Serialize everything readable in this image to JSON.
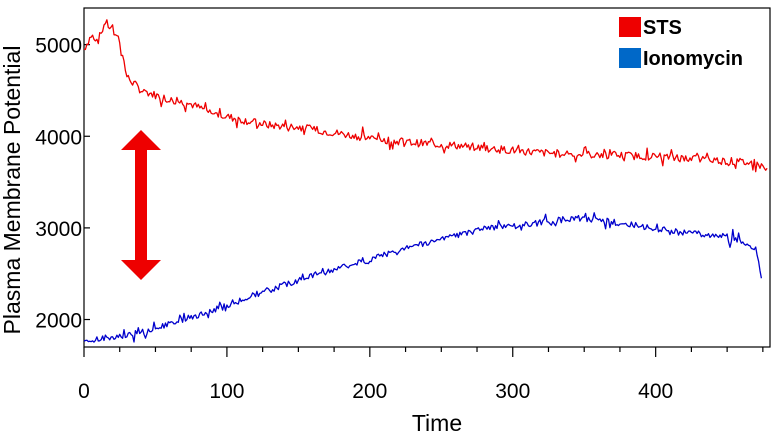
{
  "chart_data": {
    "type": "line",
    "title": "",
    "xlabel": "Time",
    "ylabel": "Plasma Membrane Potential",
    "xlim": [
      0,
      480
    ],
    "ylim": [
      1700,
      5400
    ],
    "xticks": [
      0,
      100,
      200,
      300,
      400
    ],
    "yticks": [
      2000,
      3000,
      4000,
      5000
    ],
    "grid": false,
    "legend": "top-right",
    "series": [
      {
        "name": "STS",
        "color": "#ee0000",
        "x": [
          0,
          5,
          10,
          15,
          20,
          25,
          30,
          40,
          50,
          60,
          75,
          90,
          110,
          130,
          150,
          170,
          200,
          230,
          260,
          290,
          320,
          350,
          380,
          410,
          440,
          460,
          470,
          478
        ],
        "y": [
          4950,
          5100,
          5050,
          5250,
          5150,
          5050,
          4650,
          4500,
          4450,
          4400,
          4350,
          4250,
          4180,
          4120,
          4100,
          4050,
          3980,
          3930,
          3900,
          3860,
          3820,
          3800,
          3790,
          3770,
          3740,
          3720,
          3700,
          3650
        ]
      },
      {
        "name": "Ionomycin",
        "color": "#0000cc",
        "x": [
          0,
          15,
          30,
          45,
          60,
          80,
          100,
          120,
          140,
          160,
          180,
          200,
          220,
          240,
          260,
          280,
          300,
          320,
          340,
          360,
          380,
          400,
          420,
          440,
          455,
          465,
          470,
          472,
          474
        ],
        "y": [
          1750,
          1800,
          1820,
          1880,
          1950,
          2050,
          2150,
          2270,
          2380,
          2480,
          2570,
          2650,
          2760,
          2840,
          2920,
          2990,
          3020,
          3060,
          3100,
          3090,
          3040,
          2990,
          2950,
          2920,
          2880,
          2820,
          2760,
          2650,
          2450
        ]
      }
    ],
    "annotation": "double-headed red arrow between the STS and Ionomycin curves"
  },
  "legend": {
    "items": [
      {
        "label": "STS",
        "color": "#ee0000"
      },
      {
        "label": "Ionomycin",
        "color": "#0068c8"
      }
    ]
  },
  "colors": {
    "arrow": "#ee0000",
    "axis": "#000000",
    "background": "#ffffff"
  }
}
